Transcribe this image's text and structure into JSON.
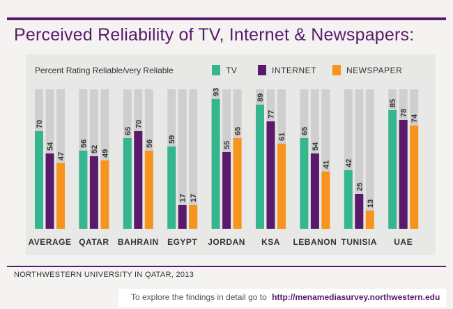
{
  "title": "Perceived Reliability of TV, Internet & Newspapers:",
  "source": "NORTHWESTERN UNIVERSITY IN QATAR, 2013",
  "explore": {
    "text": "To explore the findings in detail go to",
    "link": "http://menamediasurvey.northwestern.edu"
  },
  "colors": {
    "title": "#5a1a6c",
    "tv": "#36b68f",
    "internet": "#5a1a6c",
    "newspaper": "#f7941d",
    "track": "#cfcfcf"
  },
  "chart_data": {
    "type": "bar",
    "subtitle": "Percent Rating Reliable/very Reliable",
    "categories": [
      "AVERAGE",
      "QATAR",
      "BAHRAIN",
      "EGYPT",
      "JORDAN",
      "KSA",
      "LEBANON",
      "TUNISIA",
      "UAE"
    ],
    "series": [
      {
        "name": "TV",
        "color": "#36b68f",
        "values": [
          70,
          56,
          65,
          59,
          93,
          89,
          65,
          42,
          85
        ]
      },
      {
        "name": "INTERNET",
        "color": "#5a1a6c",
        "values": [
          54,
          52,
          70,
          17,
          55,
          77,
          54,
          25,
          78
        ]
      },
      {
        "name": "NEWSPAPER",
        "color": "#f7941d",
        "values": [
          47,
          49,
          56,
          17,
          65,
          61,
          41,
          13,
          74
        ]
      }
    ],
    "ylim": [
      0,
      100
    ],
    "legend_position": "top",
    "grid": false
  }
}
